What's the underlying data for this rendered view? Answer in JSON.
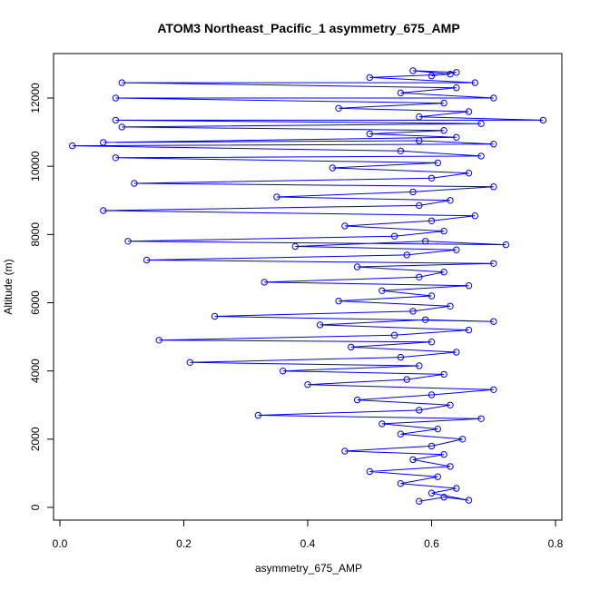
{
  "chart_data": {
    "type": "line",
    "title": "ATOM3 Northeast_Pacific_1 asymmetry_675_AMP",
    "xlabel": "asymmetry_675_AMP",
    "ylabel": "Altitude (m)",
    "xlim": [
      0.0,
      0.8
    ],
    "ylim": [
      0,
      12500
    ],
    "x_ticks": [
      0.0,
      0.2,
      0.4,
      0.6,
      0.8
    ],
    "x_tick_labels": [
      "0.0",
      "0.2",
      "0.4",
      "0.6",
      "0.8"
    ],
    "y_ticks": [
      0,
      2000,
      4000,
      6000,
      8000,
      10000,
      12000
    ],
    "y_tick_labels": [
      "0",
      "2000",
      "4000",
      "6000",
      "8000",
      "10000",
      "12000"
    ],
    "grid": false,
    "marker": "open-circle",
    "series_color": "#0000ff",
    "series": [
      {
        "points": [
          [
            0.58,
            180
          ],
          [
            0.62,
            300
          ],
          [
            0.66,
            210
          ],
          [
            0.6,
            420
          ],
          [
            0.64,
            560
          ],
          [
            0.55,
            700
          ],
          [
            0.61,
            900
          ],
          [
            0.5,
            1050
          ],
          [
            0.63,
            1200
          ],
          [
            0.57,
            1400
          ],
          [
            0.62,
            1550
          ],
          [
            0.46,
            1650
          ],
          [
            0.6,
            1800
          ],
          [
            0.65,
            2000
          ],
          [
            0.55,
            2150
          ],
          [
            0.61,
            2300
          ],
          [
            0.52,
            2450
          ],
          [
            0.68,
            2600
          ],
          [
            0.32,
            2700
          ],
          [
            0.58,
            2850
          ],
          [
            0.63,
            3000
          ],
          [
            0.48,
            3150
          ],
          [
            0.6,
            3300
          ],
          [
            0.7,
            3450
          ],
          [
            0.4,
            3600
          ],
          [
            0.56,
            3750
          ],
          [
            0.62,
            3900
          ],
          [
            0.36,
            4000
          ],
          [
            0.58,
            4150
          ],
          [
            0.21,
            4250
          ],
          [
            0.55,
            4400
          ],
          [
            0.64,
            4550
          ],
          [
            0.47,
            4700
          ],
          [
            0.6,
            4850
          ],
          [
            0.16,
            4900
          ],
          [
            0.54,
            5050
          ],
          [
            0.66,
            5200
          ],
          [
            0.42,
            5350
          ],
          [
            0.59,
            5500
          ],
          [
            0.7,
            5450
          ],
          [
            0.25,
            5600
          ],
          [
            0.57,
            5750
          ],
          [
            0.63,
            5900
          ],
          [
            0.45,
            6050
          ],
          [
            0.6,
            6200
          ],
          [
            0.52,
            6350
          ],
          [
            0.66,
            6500
          ],
          [
            0.33,
            6600
          ],
          [
            0.58,
            6750
          ],
          [
            0.62,
            6900
          ],
          [
            0.48,
            7050
          ],
          [
            0.7,
            7150
          ],
          [
            0.14,
            7250
          ],
          [
            0.56,
            7400
          ],
          [
            0.64,
            7550
          ],
          [
            0.38,
            7650
          ],
          [
            0.59,
            7800
          ],
          [
            0.72,
            7700
          ],
          [
            0.11,
            7800
          ],
          [
            0.54,
            7950
          ],
          [
            0.62,
            8100
          ],
          [
            0.46,
            8250
          ],
          [
            0.6,
            8400
          ],
          [
            0.67,
            8550
          ],
          [
            0.07,
            8700
          ],
          [
            0.58,
            8850
          ],
          [
            0.63,
            9000
          ],
          [
            0.35,
            9100
          ],
          [
            0.57,
            9250
          ],
          [
            0.7,
            9400
          ],
          [
            0.12,
            9500
          ],
          [
            0.6,
            9650
          ],
          [
            0.66,
            9800
          ],
          [
            0.44,
            9950
          ],
          [
            0.61,
            10100
          ],
          [
            0.09,
            10250
          ],
          [
            0.68,
            10300
          ],
          [
            0.55,
            10450
          ],
          [
            0.02,
            10600
          ],
          [
            0.7,
            10650
          ],
          [
            0.58,
            10750
          ],
          [
            0.07,
            10700
          ],
          [
            0.64,
            10850
          ],
          [
            0.5,
            10950
          ],
          [
            0.62,
            11050
          ],
          [
            0.1,
            11150
          ],
          [
            0.68,
            11250
          ],
          [
            0.09,
            11350
          ],
          [
            0.78,
            11350
          ],
          [
            0.58,
            11450
          ],
          [
            0.66,
            11600
          ],
          [
            0.45,
            11700
          ],
          [
            0.62,
            11850
          ],
          [
            0.09,
            12000
          ],
          [
            0.7,
            12000
          ],
          [
            0.55,
            12150
          ],
          [
            0.64,
            12300
          ],
          [
            0.1,
            12450
          ],
          [
            0.67,
            12450
          ],
          [
            0.5,
            12600
          ],
          [
            0.63,
            12700
          ],
          [
            0.57,
            12800
          ],
          [
            0.64,
            12750
          ],
          [
            0.6,
            12650
          ]
        ]
      }
    ]
  }
}
